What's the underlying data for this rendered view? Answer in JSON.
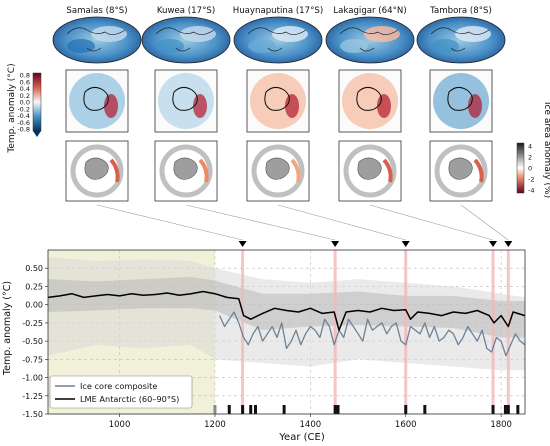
{
  "colors": {
    "warm": "#b2182b",
    "cool": "#2166ac",
    "ice_core_line": "#6e8296",
    "lme_line": "#000000",
    "band": "#d9d9d9",
    "early_shade": "#f1f0d8",
    "eruption_line": "#f4b6b6"
  },
  "panels": {
    "volcanoes": [
      {
        "label": "Samalas (8°S)"
      },
      {
        "label": "Kuwea (17°S)"
      },
      {
        "label": "Huaynaputina (17°S)"
      },
      {
        "label": "Lakagigar (64°N)"
      },
      {
        "label": "Tambora (8°S)"
      }
    ],
    "temp_colorbar": {
      "label": "Temp. anomaly (°C)",
      "ticks": [
        "0.8",
        "0.6",
        "0.4",
        "0.2",
        "0.0",
        "-0.2",
        "-0.4",
        "-0.6",
        "-0.8"
      ]
    },
    "ice_colorbar": {
      "label": "Ice area anomaly (%)",
      "ticks": [
        "4",
        "2",
        "0",
        "-2",
        "-4"
      ]
    }
  },
  "chart_data": {
    "type": "line",
    "xlabel": "Year (CE)",
    "ylabel": "Temp. anomaly (°C)",
    "xlim": [
      850,
      1850
    ],
    "ylim": [
      -1.5,
      0.75
    ],
    "xticks": [
      1000,
      1200,
      1400,
      1600,
      1800
    ],
    "yticks": [
      0.5,
      0.25,
      0.0,
      -0.25,
      -0.5,
      -0.75,
      -1.0,
      -1.25,
      -1.5
    ],
    "grid": true,
    "legend_position": "bottom-left",
    "shaded_period": [
      850,
      1200
    ],
    "eruption_years": [
      1258,
      1452,
      1600,
      1783,
      1815
    ],
    "series": [
      {
        "name": "Ice core composite",
        "x": [
          1210,
          1220,
          1230,
          1240,
          1250,
          1260,
          1270,
          1280,
          1290,
          1300,
          1310,
          1320,
          1330,
          1340,
          1350,
          1360,
          1370,
          1380,
          1390,
          1400,
          1410,
          1420,
          1430,
          1440,
          1450,
          1460,
          1470,
          1480,
          1490,
          1500,
          1510,
          1520,
          1530,
          1540,
          1550,
          1560,
          1570,
          1580,
          1590,
          1600,
          1610,
          1620,
          1630,
          1640,
          1650,
          1660,
          1670,
          1680,
          1690,
          1700,
          1710,
          1720,
          1730,
          1740,
          1750,
          1760,
          1770,
          1780,
          1790,
          1800,
          1810,
          1820,
          1830,
          1840,
          1850
        ],
        "values": [
          -0.15,
          -0.3,
          -0.2,
          -0.1,
          -0.25,
          -0.45,
          -0.55,
          -0.4,
          -0.3,
          -0.5,
          -0.4,
          -0.3,
          -0.45,
          -0.25,
          -0.6,
          -0.5,
          -0.35,
          -0.55,
          -0.4,
          -0.3,
          -0.35,
          -0.45,
          -0.2,
          -0.3,
          -0.55,
          -0.35,
          -0.45,
          -0.2,
          -0.3,
          -0.4,
          -0.5,
          -0.2,
          -0.35,
          -0.3,
          -0.25,
          -0.4,
          -0.3,
          -0.25,
          -0.5,
          -0.55,
          -0.3,
          -0.35,
          -0.4,
          -0.25,
          -0.45,
          -0.3,
          -0.5,
          -0.45,
          -0.35,
          -0.4,
          -0.55,
          -0.45,
          -0.3,
          -0.4,
          -0.5,
          -0.35,
          -0.6,
          -0.65,
          -0.45,
          -0.5,
          -0.7,
          -0.55,
          -0.4,
          -0.5,
          -0.55
        ]
      },
      {
        "name": "LME Antarctic (60–90°S)",
        "x": [
          850,
          875,
          900,
          925,
          950,
          975,
          1000,
          1025,
          1050,
          1075,
          1100,
          1125,
          1150,
          1175,
          1200,
          1225,
          1250,
          1260,
          1275,
          1300,
          1325,
          1350,
          1375,
          1400,
          1425,
          1450,
          1460,
          1475,
          1500,
          1525,
          1550,
          1575,
          1600,
          1610,
          1625,
          1650,
          1675,
          1700,
          1725,
          1750,
          1775,
          1785,
          1800,
          1815,
          1825,
          1850
        ],
        "values": [
          0.1,
          0.12,
          0.15,
          0.1,
          0.12,
          0.14,
          0.12,
          0.15,
          0.13,
          0.14,
          0.16,
          0.13,
          0.15,
          0.18,
          0.15,
          0.1,
          0.08,
          -0.15,
          -0.2,
          -0.12,
          -0.05,
          -0.08,
          -0.1,
          -0.05,
          -0.12,
          -0.1,
          -0.35,
          -0.1,
          -0.08,
          -0.1,
          -0.05,
          -0.08,
          -0.07,
          -0.2,
          -0.1,
          -0.12,
          -0.15,
          -0.1,
          -0.12,
          -0.08,
          -0.15,
          -0.25,
          -0.15,
          -0.3,
          -0.1,
          -0.15
        ]
      }
    ],
    "ice_core_composite_band": {
      "x": [
        850,
        950,
        1050,
        1150,
        1200,
        1300,
        1400,
        1500,
        1600,
        1700,
        1800,
        1850
      ],
      "upper": [
        0.65,
        0.6,
        0.62,
        0.6,
        0.5,
        0.35,
        0.3,
        0.35,
        0.3,
        0.25,
        0.15,
        0.1
      ],
      "lower": [
        -0.7,
        -0.55,
        -0.6,
        -0.55,
        -0.75,
        -0.8,
        -0.85,
        -0.75,
        -0.8,
        -0.85,
        -0.9,
        -0.9
      ]
    },
    "lme_band": {
      "x": [
        850,
        950,
        1050,
        1150,
        1200,
        1300,
        1400,
        1500,
        1600,
        1700,
        1800,
        1850
      ],
      "upper": [
        0.35,
        0.32,
        0.35,
        0.38,
        0.33,
        0.15,
        0.15,
        0.18,
        0.12,
        0.12,
        0.05,
        0.05
      ],
      "lower": [
        -0.1,
        -0.08,
        -0.05,
        -0.05,
        -0.08,
        -0.35,
        -0.3,
        -0.28,
        -0.3,
        -0.32,
        -0.45,
        -0.45
      ]
    },
    "event_marks": [
      {
        "year": 1200,
        "color": "gray"
      },
      {
        "year": 1230,
        "color": "black"
      },
      {
        "year": 1258,
        "color": "black"
      },
      {
        "year": 1275,
        "color": "black"
      },
      {
        "year": 1285,
        "color": "black"
      },
      {
        "year": 1345,
        "color": "black"
      },
      {
        "year": 1452,
        "color": "black"
      },
      {
        "year": 1458,
        "color": "black"
      },
      {
        "year": 1600,
        "color": "black"
      },
      {
        "year": 1640,
        "color": "black"
      },
      {
        "year": 1783,
        "color": "black"
      },
      {
        "year": 1809,
        "color": "black"
      },
      {
        "year": 1815,
        "color": "black"
      },
      {
        "year": 1835,
        "color": "black"
      }
    ]
  }
}
